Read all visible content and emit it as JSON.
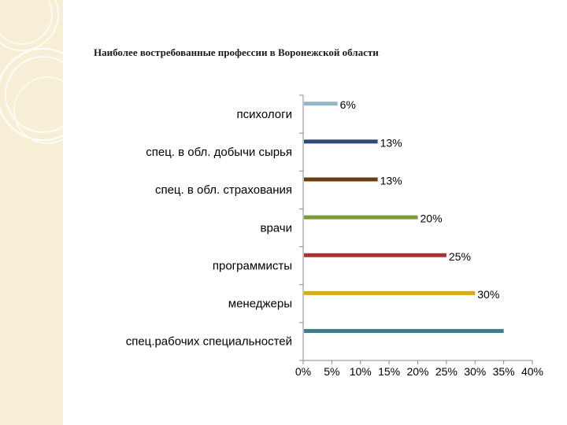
{
  "slide": {
    "title": "Наиболее востребованные профессии в Воронежской области"
  },
  "theme": {
    "sidebar_color": "#f7efd5",
    "ornament_color": "#ffffff"
  },
  "chart_data": {
    "type": "bar",
    "orientation": "horizontal",
    "title": "",
    "xlabel": "",
    "ylabel": "",
    "categories": [
      "психологи",
      "спец. в обл. добычи сырья",
      "спец. в обл. страхования",
      "врачи",
      "программисты",
      "менеджеры",
      "спец.рабочих специальностей"
    ],
    "values": [
      6,
      13,
      13,
      20,
      25,
      30,
      35
    ],
    "data_labels": [
      "6%",
      "13%",
      "13%",
      "20%",
      "25%",
      "30%",
      ""
    ],
    "colors": [
      "#93b6c8",
      "#2e4a7a",
      "#6b3e12",
      "#7a9a3a",
      "#a83232",
      "#d9a921",
      "#3f7c8c"
    ],
    "xlim": [
      0,
      40
    ],
    "x_ticks": [
      "0%",
      "5%",
      "10%",
      "15%",
      "20%",
      "25%",
      "30%",
      "35%",
      "40%"
    ],
    "grid": false,
    "legend": "none"
  }
}
